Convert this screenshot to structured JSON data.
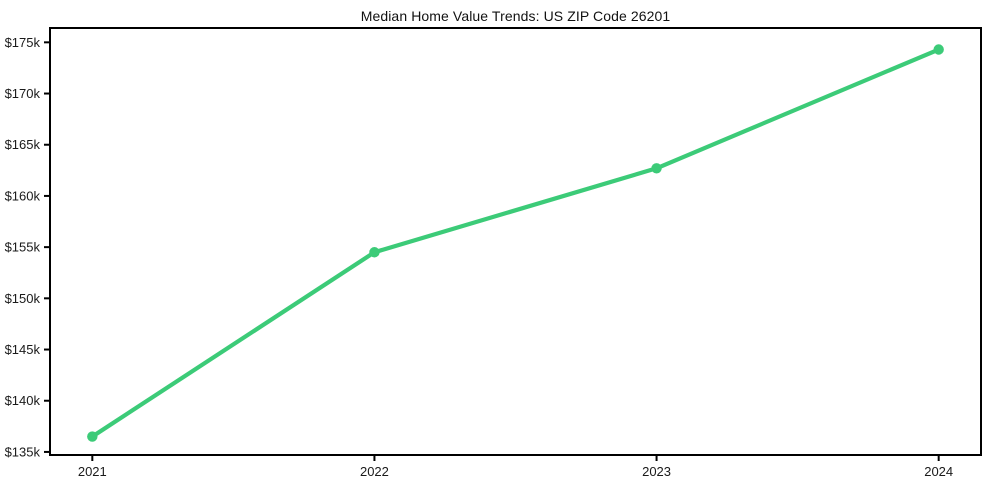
{
  "chart_data": {
    "type": "line",
    "title": "Median Home Value Trends: US ZIP Code 26201",
    "xlabel": "",
    "ylabel": "",
    "categories": [
      "2021",
      "2022",
      "2023",
      "2024"
    ],
    "x": [
      2021,
      2022,
      2023,
      2024
    ],
    "values": [
      136500,
      154500,
      162700,
      174300
    ],
    "yticks": [
      135000,
      140000,
      145000,
      150000,
      155000,
      160000,
      165000,
      170000,
      175000
    ],
    "ytick_labels": [
      "$135k",
      "$140k",
      "$145k",
      "$150k",
      "$155k",
      "$160k",
      "$165k",
      "$170k",
      "$175k"
    ],
    "xlim": [
      2020.85,
      2024.15
    ],
    "ylim": [
      134700,
      176400
    ],
    "grid": false,
    "legend": "none",
    "line_color": "#3ccb78",
    "marker_color": "#3ccb78",
    "spine_color": "#000000",
    "text_color": "#1a1a1a"
  }
}
